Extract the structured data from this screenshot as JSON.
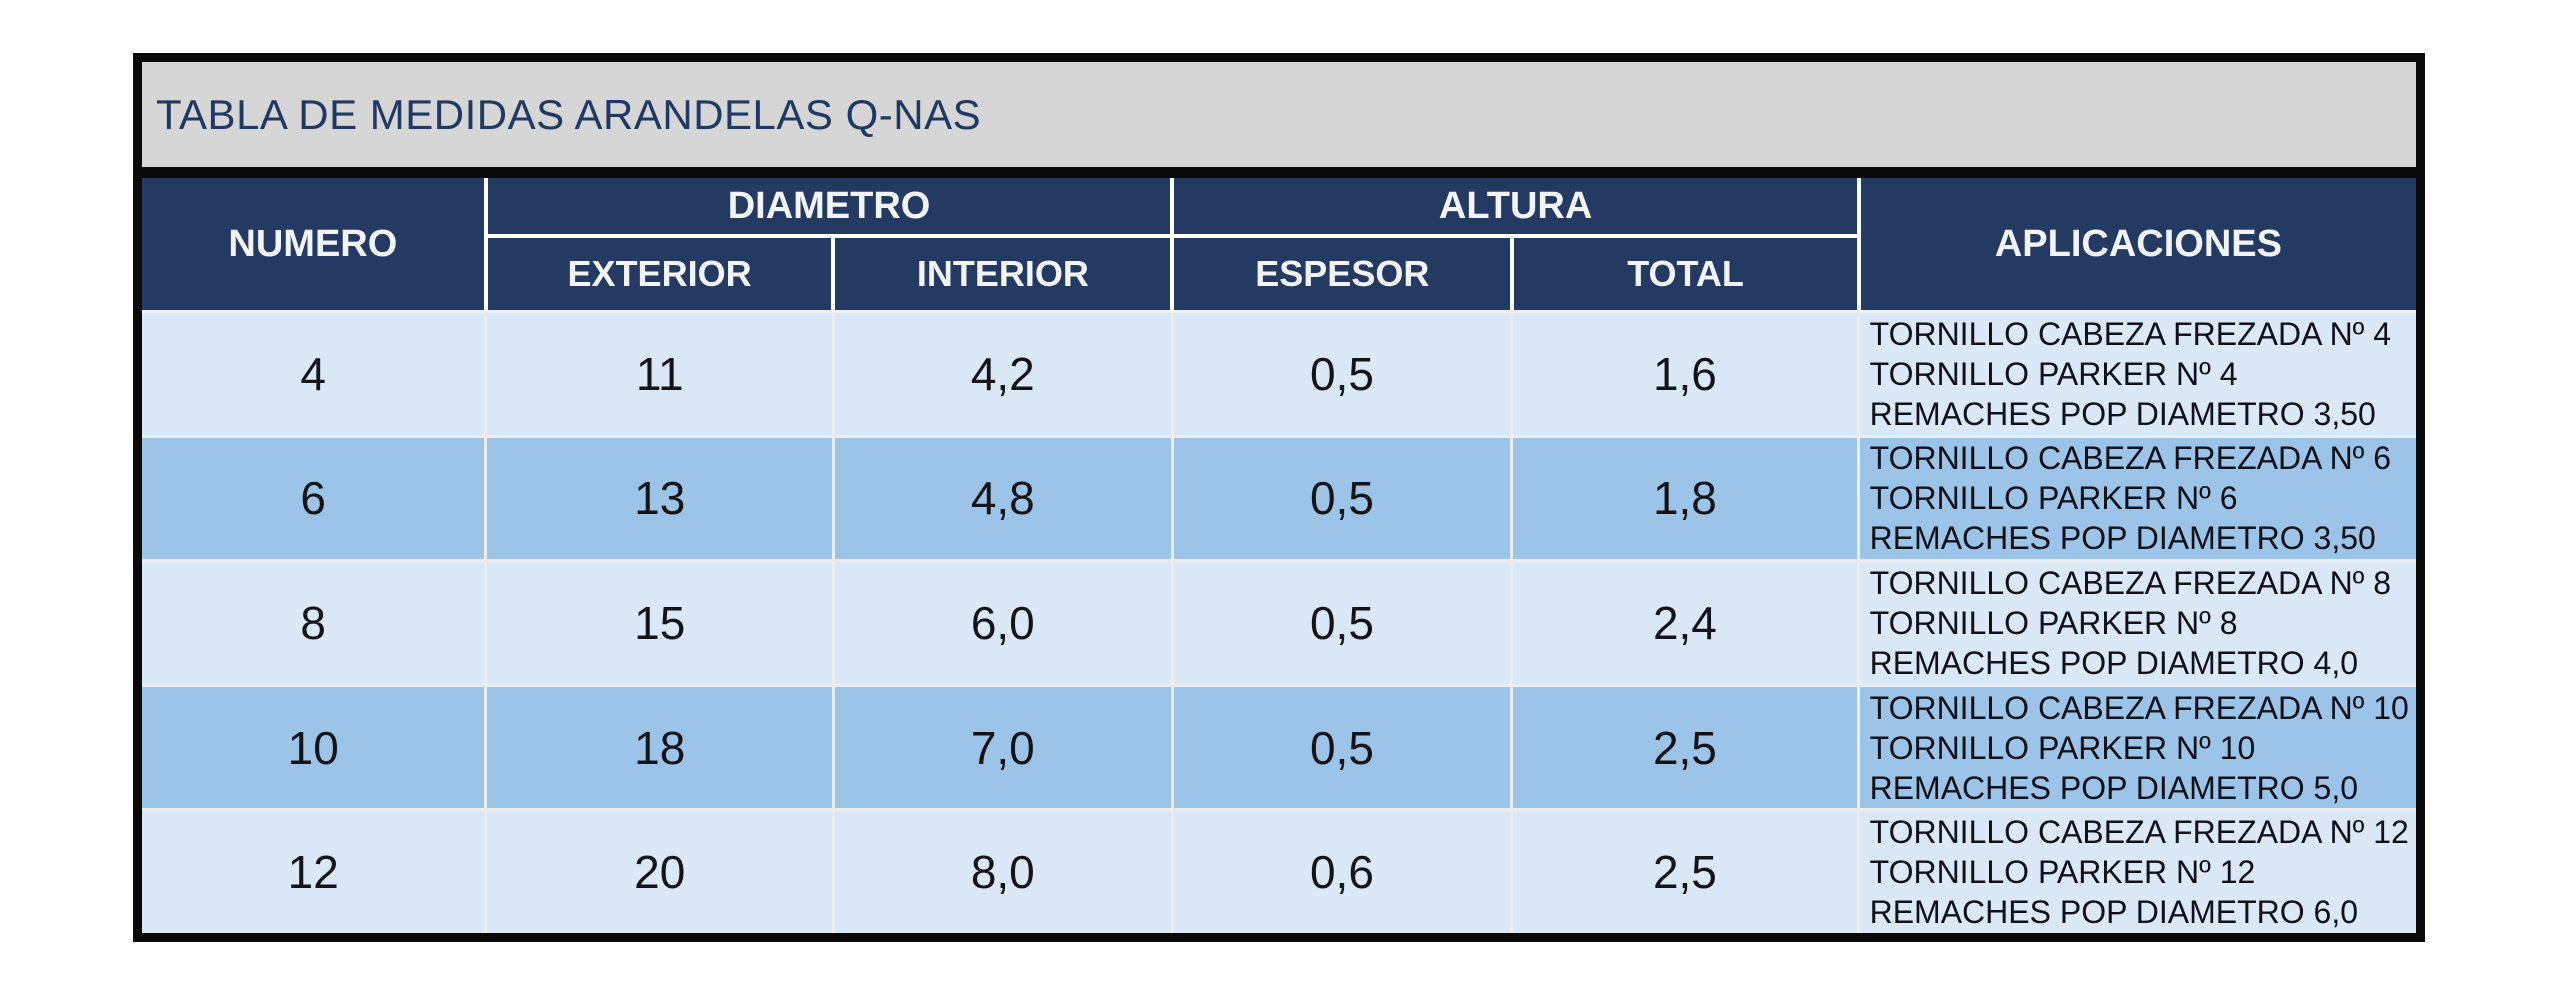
{
  "title": "TABLA DE MEDIDAS ARANDELAS Q-NAS",
  "table": {
    "header": {
      "numero": "NUMERO",
      "diametro": "DIAMETRO",
      "altura": "ALTURA",
      "aplicaciones": "APLICACIONES",
      "exterior": "EXTERIOR",
      "interior": "INTERIOR",
      "espesor": "ESPESOR",
      "total": "TOTAL"
    },
    "rows": [
      {
        "numero": "4",
        "exterior": "11",
        "interior": "4,2",
        "espesor": "0,5",
        "total": "1,6",
        "aplicaciones": [
          "TORNILLO CABEZA FREZADA Nº 4",
          "TORNILLO PARKER Nº 4",
          "REMACHES POP DIAMETRO 3,50"
        ]
      },
      {
        "numero": "6",
        "exterior": "13",
        "interior": "4,8",
        "espesor": "0,5",
        "total": "1,8",
        "aplicaciones": [
          "TORNILLO CABEZA FREZADA Nº 6",
          "TORNILLO PARKER Nº 6",
          "REMACHES POP DIAMETRO 3,50"
        ]
      },
      {
        "numero": "8",
        "exterior": "15",
        "interior": "6,0",
        "espesor": "0,5",
        "total": "2,4",
        "aplicaciones": [
          "TORNILLO CABEZA FREZADA Nº 8",
          "TORNILLO PARKER Nº 8",
          "REMACHES POP DIAMETRO 4,0"
        ]
      },
      {
        "numero": "10",
        "exterior": "18",
        "interior": "7,0",
        "espesor": "0,5",
        "total": "2,5",
        "aplicaciones": [
          "TORNILLO CABEZA FREZADA Nº 10",
          "TORNILLO PARKER Nº 10",
          "REMACHES POP DIAMETRO 5,0"
        ]
      },
      {
        "numero": "12",
        "exterior": "20",
        "interior": "8,0",
        "espesor": "0,6",
        "total": "2,5",
        "aplicaciones": [
          "TORNILLO CABEZA FREZADA Nº 12",
          "TORNILLO PARKER Nº 12",
          "REMACHES POP DIAMETRO 6,0"
        ]
      }
    ]
  },
  "colors": {
    "navy_header": "#253A63",
    "title_bg": "#D6D6D6",
    "title_text": "#1F3864",
    "row_light": "#DBE8F7",
    "row_medium": "#9CC4E8",
    "border_black": "#0A0A0A"
  }
}
